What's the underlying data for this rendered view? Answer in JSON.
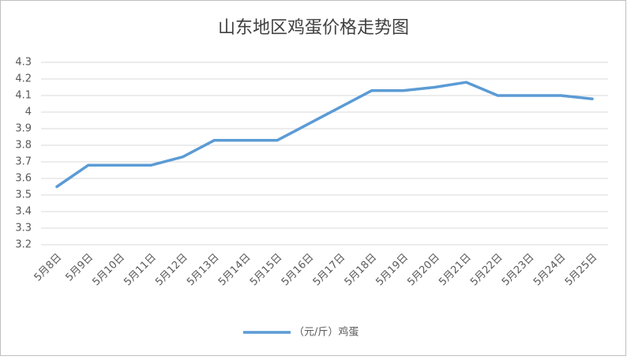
{
  "chart_data": {
    "type": "line",
    "title": "山东地区鸡蛋价格走势图",
    "categories": [
      "5月8日",
      "5月9日",
      "5月10日",
      "5月11日",
      "5月12日",
      "5月13日",
      "5月14日",
      "5月15日",
      "5月16日",
      "5月17日",
      "5月18日",
      "5月19日",
      "5月20日",
      "5月21日",
      "5月22日",
      "5月23日",
      "5月24日",
      "5月25日"
    ],
    "series": [
      {
        "name": "（元/斤）鸡蛋",
        "color": "#5b9bd5",
        "values": [
          3.55,
          3.68,
          3.68,
          3.68,
          3.73,
          3.83,
          3.83,
          3.83,
          3.93,
          4.03,
          4.13,
          4.13,
          4.15,
          4.18,
          4.1,
          4.1,
          4.1,
          4.08
        ]
      }
    ],
    "ylim": [
      3.2,
      4.3
    ],
    "yticks": [
      3.2,
      3.3,
      3.4,
      3.5,
      3.6,
      3.7,
      3.8,
      3.9,
      4,
      4.1,
      4.2,
      4.3
    ],
    "grid": true,
    "legend": "bottom"
  }
}
